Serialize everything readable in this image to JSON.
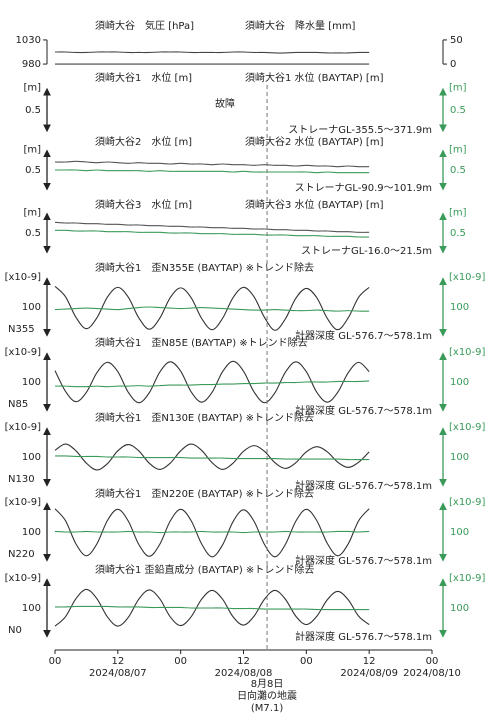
{
  "chart_data": {
    "type": "line",
    "x": [
      0,
      2,
      4,
      6,
      8,
      10,
      12,
      14,
      16,
      18,
      20,
      22,
      24,
      26,
      28,
      30,
      32,
      34,
      36,
      38,
      40,
      42,
      44,
      46,
      48,
      50,
      52,
      54,
      56,
      58,
      60
    ],
    "xlim": [
      0,
      72
    ],
    "xticks": [
      {
        "value": 0,
        "label": "00"
      },
      {
        "value": 12,
        "label": "12"
      },
      {
        "value": 24,
        "label": "00"
      },
      {
        "value": 36,
        "label": "12"
      },
      {
        "value": 48,
        "label": "00"
      },
      {
        "value": 60,
        "label": "12"
      },
      {
        "value": 72,
        "label": "00"
      }
    ],
    "date_labels": [
      {
        "value": 12,
        "label": "2024/08/07"
      },
      {
        "value": 36,
        "label": "2024/08/08"
      },
      {
        "value": 60,
        "label": "2024/08/09"
      },
      {
        "value": 72,
        "label": "2024/08/10"
      }
    ],
    "event": {
      "value": 40.5,
      "labels": [
        "8月8日",
        "日向灘の地震",
        "(M7.1)"
      ]
    },
    "panels": [
      {
        "titles": [
          "須崎大谷　気圧 [hPa]",
          "須崎大谷　降水量 [mm]"
        ],
        "ylim": [
          976,
          1034
        ],
        "yticks": [
          1030,
          980
        ],
        "y2lim": [
          -4,
          54
        ],
        "y2ticks": [
          50,
          0
        ],
        "series": [
          {
            "color": "#444444",
            "values": [
              1005,
              1005,
              1004,
              1004,
              1005,
              1005,
              1005,
              1004,
              1004,
              1004,
              1005,
              1005,
              1005,
              1004,
              1004,
              1004,
              1004,
              1005,
              1005,
              1004,
              1004,
              1003,
              1003,
              1004,
              1004,
              1004,
              1003,
              1003,
              1003,
              1004,
              1004
            ]
          },
          {
            "color": "#444444",
            "axis": "y2",
            "values": [
              0,
              0,
              0,
              0,
              0,
              0,
              0,
              0,
              0,
              0,
              0,
              0,
              0,
              0,
              0,
              0,
              0,
              0,
              0,
              0,
              0,
              0,
              0,
              0,
              0,
              0,
              0,
              0,
              0,
              0,
              0
            ]
          }
        ]
      },
      {
        "titles": [
          "須崎大谷1　水位 [m]",
          "須崎大谷1 水位 (BAYTAP) [m]"
        ],
        "status": "故障",
        "unit": "[m]",
        "scale": 0.5,
        "right_unit": "[m]",
        "right_scale": 0.5,
        "ylim": [
          -0.3,
          0.3
        ],
        "note": "ストレーナGL-355.5～371.9m",
        "series": []
      },
      {
        "titles": [
          "須崎大谷2　水位 [m]",
          "須崎大谷2 水位 (BAYTAP) [m]"
        ],
        "unit": "[m]",
        "scale": 0.5,
        "right_unit": "[m]",
        "right_scale": 0.5,
        "ylim": [
          -0.3,
          0.3
        ],
        "note": "ストレーナGL-90.9～101.9m",
        "series": [
          {
            "color": "#555555",
            "values": [
              0.12,
              0.12,
              0.13,
              0.12,
              0.11,
              0.12,
              0.11,
              0.1,
              0.11,
              0.1,
              0.1,
              0.09,
              0.1,
              0.09,
              0.09,
              0.08,
              0.09,
              0.08,
              0.08,
              0.07,
              0.08,
              0.07,
              0.07,
              0.06,
              0.07,
              0.06,
              0.06,
              0.05,
              0.06,
              0.05,
              0.05
            ]
          },
          {
            "color": "#3a9a5a",
            "values": [
              0,
              0,
              0,
              -0.01,
              0,
              -0.01,
              -0.01,
              -0.01,
              -0.01,
              -0.02,
              -0.01,
              -0.02,
              -0.02,
              -0.02,
              -0.02,
              -0.02,
              -0.02,
              -0.03,
              -0.02,
              -0.03,
              -0.03,
              -0.03,
              -0.03,
              -0.03,
              -0.03,
              -0.04,
              -0.03,
              -0.04,
              -0.04,
              -0.04,
              -0.04
            ]
          }
        ]
      },
      {
        "titles": [
          "須崎大谷3　水位 [m]",
          "須崎大谷3 水位 (BAYTAP) [m]"
        ],
        "unit": "[m]",
        "scale": 0.5,
        "right_unit": "[m]",
        "right_scale": 0.5,
        "ylim": [
          -0.3,
          0.3
        ],
        "note": "ストレーナGL-16.0～21.5m",
        "series": [
          {
            "color": "#555555",
            "values": [
              0.16,
              0.15,
              0.15,
              0.14,
              0.14,
              0.13,
              0.13,
              0.12,
              0.12,
              0.11,
              0.11,
              0.1,
              0.1,
              0.09,
              0.09,
              0.08,
              0.08,
              0.07,
              0.07,
              0.06,
              0.06,
              0.05,
              0.05,
              0.04,
              0.04,
              0.03,
              0.03,
              0.02,
              0.02,
              0.01,
              0.01
            ]
          },
          {
            "color": "#3a9a5a",
            "values": [
              0.04,
              0.04,
              0.03,
              0.03,
              0.03,
              0.02,
              0.02,
              0.02,
              0.01,
              0.01,
              0.01,
              0,
              0,
              0,
              -0.01,
              -0.01,
              -0.01,
              -0.02,
              -0.02,
              -0.02,
              -0.03,
              -0.03,
              -0.03,
              -0.04,
              -0.04,
              -0.04,
              -0.05,
              -0.05,
              -0.05,
              -0.06,
              -0.06
            ]
          }
        ]
      },
      {
        "titles": [
          "須崎大谷1　歪N355E (BAYTAP) ※トレンド除去"
        ],
        "unit": "[x10-9]",
        "scale": 100,
        "right_unit": "[x10-9]",
        "right_scale": 100,
        "direction": "N355",
        "ylim": [
          -60,
          60
        ],
        "note": "計器深度 GL-576.7～578.1m",
        "series": [
          {
            "color": "#333333",
            "values": [
              40,
              20,
              -20,
              -42,
              -21,
              19,
              38,
              19,
              -21,
              -43,
              -22,
              18,
              37,
              18,
              -22,
              -44,
              -22,
              18,
              38,
              20,
              -20,
              -45,
              -23,
              17,
              36,
              18,
              -22,
              -44,
              -21,
              19,
              38
            ]
          },
          {
            "color": "#3a9a5a",
            "values": [
              -5,
              -4,
              -3,
              -2,
              -3,
              -4,
              -5,
              -3,
              -1,
              0,
              -1,
              -2,
              -3,
              -2,
              -1,
              -2,
              -3,
              -4,
              -5,
              -6,
              -6,
              -5,
              -6,
              -7,
              -7,
              -6,
              -7,
              -8,
              -7,
              -8,
              -8
            ]
          }
        ]
      },
      {
        "titles": [
          "須崎大谷1　歪N85E (BAYTAP) ※トレンド除去"
        ],
        "unit": "[x10-9]",
        "scale": 100,
        "right_unit": "[x10-9]",
        "right_scale": 100,
        "direction": "N85",
        "ylim": [
          -60,
          60
        ],
        "note": "計器深度 GL-576.7～578.1m",
        "series": [
          {
            "color": "#333333",
            "values": [
              22,
              -18,
              -38,
              -20,
              18,
              38,
              20,
              -20,
              -40,
              -21,
              19,
              39,
              21,
              -19,
              -39,
              -20,
              20,
              40,
              21,
              -19,
              -40,
              -21,
              19,
              39,
              20,
              -20,
              -39,
              -20,
              18,
              38,
              20
            ]
          },
          {
            "color": "#3a9a5a",
            "values": [
              -8,
              -8,
              -9,
              -9,
              -8,
              -9,
              -8,
              -8,
              -7,
              -8,
              -7,
              -6,
              -6,
              -6,
              -5,
              -5,
              -4,
              -4,
              -3,
              -3,
              -2,
              -2,
              -1,
              -1,
              0,
              0,
              0,
              1,
              1,
              1,
              2
            ]
          }
        ]
      },
      {
        "titles": [
          "須崎大谷1　歪N130E (BAYTAP) ※トレンド除去"
        ],
        "unit": "[x10-9]",
        "scale": 100,
        "right_unit": "[x10-9]",
        "right_scale": 100,
        "direction": "N130",
        "ylim": [
          -60,
          60
        ],
        "note": "計器深度 GL-576.7～578.1m",
        "series": [
          {
            "color": "#333333",
            "values": [
              13,
              25,
              12,
              -12,
              -25,
              -13,
              12,
              24,
              12,
              -12,
              -24,
              -12,
              12,
              25,
              13,
              -11,
              -24,
              -12,
              11,
              22,
              11,
              -11,
              -22,
              -11,
              10,
              20,
              10,
              -10,
              -20,
              -10,
              10
            ]
          },
          {
            "color": "#3a9a5a",
            "values": [
              2,
              2,
              1,
              1,
              1,
              0,
              0,
              0,
              -1,
              -1,
              -1,
              -1,
              -1,
              -2,
              -2,
              -2,
              -2,
              -3,
              -3,
              -3,
              -3,
              -3,
              -4,
              -4,
              -4,
              -4,
              -4,
              -4,
              -5,
              -5,
              -5
            ]
          }
        ]
      },
      {
        "titles": [
          "須崎大谷1　歪N220E (BAYTAP) ※トレンド除去"
        ],
        "unit": "[x10-9]",
        "scale": 100,
        "right_unit": "[x10-9]",
        "right_scale": 100,
        "direction": "N220",
        "ylim": [
          -60,
          60
        ],
        "note": "計器深度 GL-576.7～578.1m",
        "series": [
          {
            "color": "#333333",
            "values": [
              45,
              22,
              -23,
              -46,
              -23,
              22,
              44,
              21,
              -24,
              -47,
              -24,
              21,
              44,
              22,
              -23,
              -48,
              -25,
              20,
              43,
              21,
              -24,
              -48,
              -24,
              21,
              44,
              22,
              -22,
              -46,
              -23,
              22,
              45
            ]
          },
          {
            "color": "#3a9a5a",
            "values": [
              1,
              0,
              0,
              1,
              0,
              0,
              0,
              1,
              0,
              0,
              -1,
              0,
              0,
              0,
              1,
              0,
              0,
              0,
              -1,
              0,
              0,
              0,
              1,
              0,
              0,
              0,
              0,
              1,
              1,
              0,
              1
            ]
          }
        ]
      },
      {
        "titles": [
          "須崎大谷1 歪鉛直成分 (BAYTAP) ※トレンド除去"
        ],
        "unit": "[x10-9]",
        "scale": 100,
        "right_unit": "[x10-9]",
        "right_scale": 100,
        "direction": "N0",
        "ylim": [
          -60,
          60
        ],
        "note": "計器深度 GL-576.7～578.1m",
        "series": [
          {
            "color": "#333333",
            "values": [
              -35,
              -17,
              18,
              36,
              18,
              -17,
              -35,
              -18,
              17,
              35,
              18,
              -17,
              -34,
              -17,
              17,
              34,
              17,
              -17,
              -33,
              -16,
              17,
              34,
              17,
              -16,
              -32,
              -16,
              16,
              32,
              16,
              -16,
              -32
            ]
          },
          {
            "color": "#3a9a5a",
            "values": [
              2,
              2,
              3,
              3,
              3,
              3,
              2,
              2,
              2,
              1,
              1,
              1,
              1,
              0,
              0,
              0,
              0,
              -1,
              -1,
              -1,
              -2,
              -2,
              -2,
              -2,
              -2,
              -3,
              -3,
              -3,
              -3,
              -3,
              -3
            ]
          }
        ]
      }
    ]
  }
}
